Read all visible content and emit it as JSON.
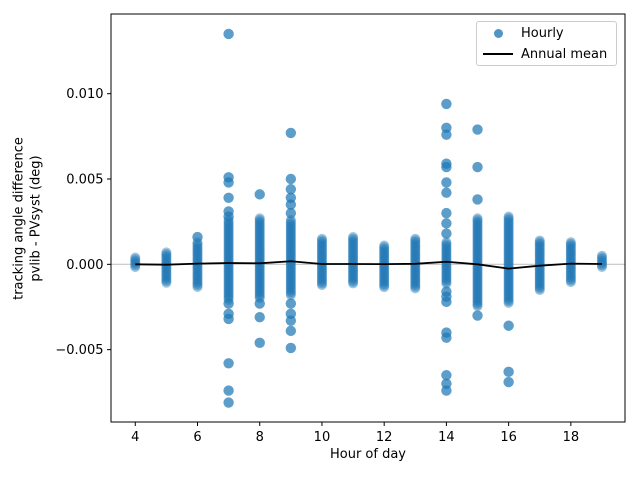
{
  "chart_data": {
    "type": "scatter",
    "title": "",
    "xlabel": "Hour of day",
    "ylabel_lines": [
      "tracking angle difference",
      "pvlib - PVsyst (deg)"
    ],
    "xlim": [
      3.22,
      19.74
    ],
    "ylim": [
      -0.00924,
      0.01467
    ],
    "xticks": [
      4,
      6,
      8,
      10,
      12,
      14,
      16,
      18
    ],
    "yticks": [
      -0.005,
      0,
      0.005,
      0.01
    ],
    "ytick_labels": [
      "−0.005",
      "0.000",
      "0.005",
      "0.010"
    ],
    "grid": false,
    "zero_line_color": "#c6c6c6",
    "point_color": "#1f77b4",
    "mean_line_color": "#000000",
    "legend": {
      "position": "upper right",
      "entries": [
        {
          "label": "Hourly",
          "marker": "dot",
          "color": "#1f77b4"
        },
        {
          "label": "Annual mean",
          "marker": "line",
          "color": "#000000"
        }
      ]
    },
    "hourly": [
      {
        "hour": 4,
        "dense": [
          -0.0002,
          0.0004
        ],
        "up": [],
        "down": []
      },
      {
        "hour": 5,
        "dense": [
          -0.0011,
          0.0007
        ],
        "up": [],
        "down": []
      },
      {
        "hour": 6,
        "dense": [
          -0.0014,
          0.0013
        ],
        "up": [
          0.0016
        ],
        "down": []
      },
      {
        "hour": 7,
        "dense": [
          -0.0021,
          0.0026
        ],
        "up": [
          0.0135,
          0.0051,
          0.0048,
          0.0039,
          0.0031,
          0.0028
        ],
        "down": [
          -0.0023,
          -0.0029,
          -0.0032,
          -0.0058,
          -0.0074,
          -0.0081
        ]
      },
      {
        "hour": 8,
        "dense": [
          -0.002,
          0.0027
        ],
        "up": [
          0.0041
        ],
        "down": [
          -0.0023,
          -0.0031,
          -0.0046
        ]
      },
      {
        "hour": 9,
        "dense": [
          -0.0019,
          0.0026
        ],
        "up": [
          0.0077,
          0.005,
          0.0044,
          0.0039,
          0.0035,
          0.003
        ],
        "down": [
          -0.0023,
          -0.0029,
          -0.0033,
          -0.0039,
          -0.0049
        ]
      },
      {
        "hour": 10,
        "dense": [
          -0.0013,
          0.0015
        ],
        "up": [],
        "down": []
      },
      {
        "hour": 11,
        "dense": [
          -0.0012,
          0.0016
        ],
        "up": [],
        "down": []
      },
      {
        "hour": 12,
        "dense": [
          -0.0014,
          0.0011
        ],
        "up": [],
        "down": []
      },
      {
        "hour": 13,
        "dense": [
          -0.0015,
          0.0015
        ],
        "up": [],
        "down": []
      },
      {
        "hour": 14,
        "dense": [
          -0.0012,
          0.0013
        ],
        "up": [
          0.0094,
          0.008,
          0.0076,
          0.0059,
          0.0057,
          0.0048,
          0.0042,
          0.003,
          0.0024,
          0.0018
        ],
        "down": [
          -0.0016,
          -0.0019,
          -0.0022,
          -0.004,
          -0.0043,
          -0.0065,
          -0.007,
          -0.0074
        ]
      },
      {
        "hour": 15,
        "dense": [
          -0.0025,
          0.0027
        ],
        "up": [
          0.0079,
          0.0057,
          0.0038
        ],
        "down": [
          -0.003
        ]
      },
      {
        "hour": 16,
        "dense": [
          -0.0023,
          0.0028
        ],
        "up": [],
        "down": [
          -0.0036,
          -0.0063,
          -0.0069
        ]
      },
      {
        "hour": 17,
        "dense": [
          -0.0016,
          0.0014
        ],
        "up": [],
        "down": []
      },
      {
        "hour": 18,
        "dense": [
          -0.0011,
          0.0013
        ],
        "up": [],
        "down": []
      },
      {
        "hour": 19,
        "dense": [
          -0.0002,
          0.0005
        ],
        "up": [],
        "down": []
      }
    ],
    "annual_mean": {
      "hours": [
        4,
        5,
        6,
        7,
        8,
        9,
        10,
        11,
        12,
        13,
        14,
        15,
        16,
        17,
        18,
        19
      ],
      "values": [
        0.0,
        -2e-05,
        4e-05,
        8e-05,
        6e-05,
        0.00018,
        2e-05,
        2e-05,
        1e-05,
        3e-05,
        0.00015,
        0.0,
        -0.00025,
        -8e-05,
        4e-05,
        2e-05
      ]
    }
  }
}
